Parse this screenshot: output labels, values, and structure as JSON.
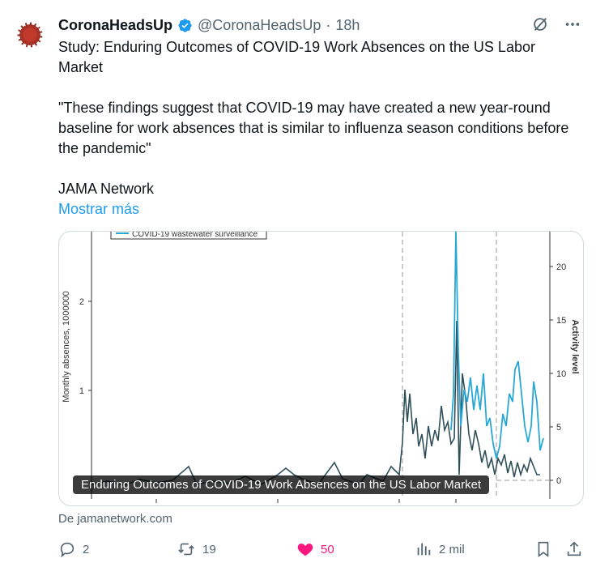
{
  "tweet": {
    "author_name": "CoronaHeadsUp",
    "handle": "@CoronaHeadsUp",
    "separator": "·",
    "time": "18h",
    "lines": [
      "Study: Enduring Outcomes of COVID-19 Work Absences on the US Labor Market",
      "\"These findings suggest that COVID-19 may have created a new  year-round baseline for work absences that is similar to influenza  season conditions before the pandemic\"",
      "JAMA Network"
    ],
    "show_more": "Mostrar más"
  },
  "card": {
    "caption": "Enduring Outcomes of COVID-19 Work Absences on the US Labor Market",
    "source": "De jamanetwork.com",
    "legend_text": "COVID-19 wastewater surveillance"
  },
  "chart_data": {
    "type": "line",
    "ylabel": "Monthly absences, 1000000",
    "y2label": "Activity level",
    "yticks": [
      "1",
      "2"
    ],
    "y2ticks": [
      "0",
      "5",
      "10",
      "15",
      "20"
    ],
    "series": [
      {
        "name": "COVID-19 wastewater surveillance",
        "color": "#29a8d6"
      }
    ]
  },
  "actions": {
    "replies": "2",
    "reposts": "19",
    "likes": "50",
    "views": "2 mil"
  },
  "colors": {
    "accent": "#1d9bf0",
    "like": "#f91880",
    "muted": "#536471"
  }
}
